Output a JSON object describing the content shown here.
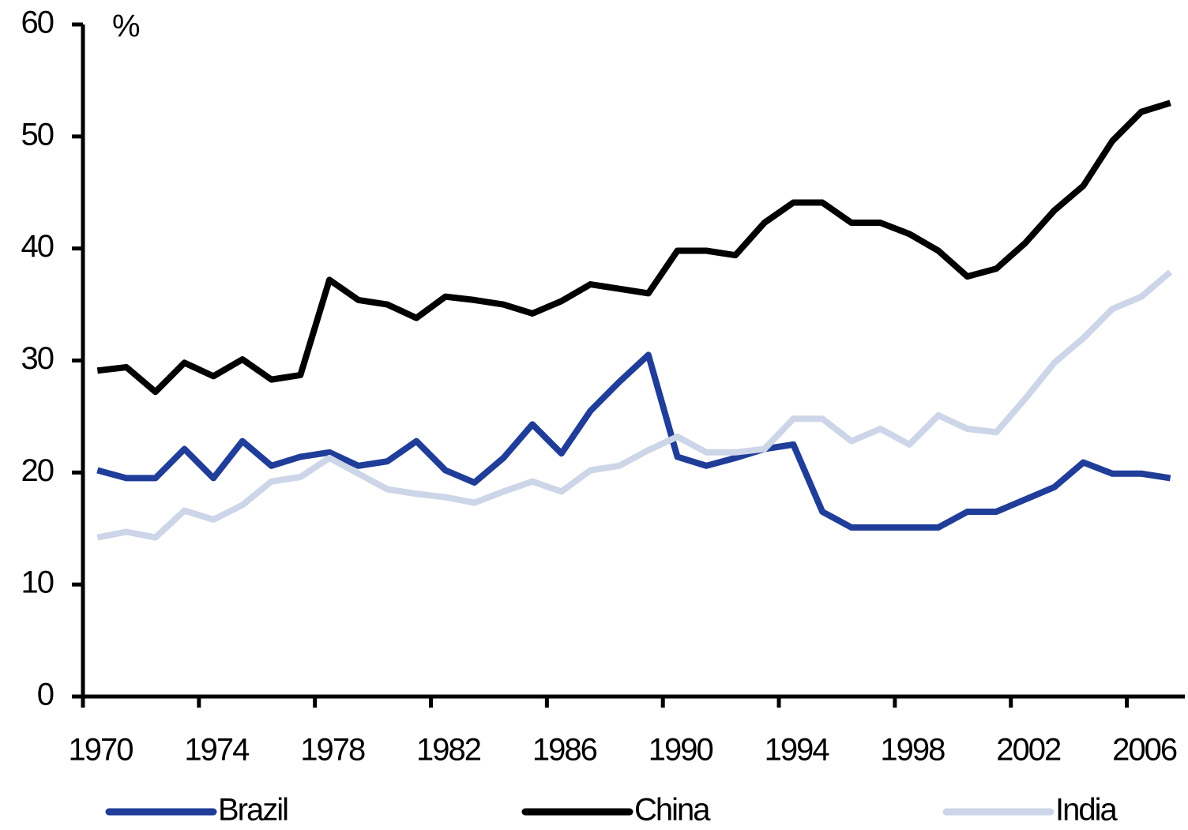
{
  "chart_data": {
    "type": "line",
    "y_label": "%",
    "categories": [
      "1970",
      null,
      null,
      null,
      "1974",
      null,
      null,
      null,
      "1978",
      null,
      null,
      null,
      "1982",
      null,
      null,
      null,
      "1986",
      null,
      null,
      null,
      "1990",
      null,
      null,
      null,
      "1994",
      null,
      null,
      null,
      "1998",
      null,
      null,
      null,
      "2002",
      null,
      null,
      null,
      "2006",
      null
    ],
    "series": [
      {
        "name": "Brazil",
        "color": "#1f3d99",
        "values": [
          20.2,
          19.5,
          19.5,
          22.1,
          19.5,
          22.8,
          20.6,
          21.4,
          21.8,
          20.6,
          21.0,
          22.8,
          20.2,
          19.1,
          21.3,
          24.3,
          21.7,
          25.5,
          28.1,
          30.5,
          21.4,
          20.6,
          21.3,
          22.1,
          22.5,
          16.5,
          15.1,
          15.1,
          15.1,
          15.1,
          16.5,
          16.5,
          17.6,
          18.7,
          20.9,
          19.9,
          19.9,
          19.5
        ]
      },
      {
        "name": "China",
        "color": "#000000",
        "values": [
          29.1,
          29.4,
          27.2,
          29.8,
          28.6,
          30.1,
          28.3,
          28.7,
          37.2,
          35.4,
          35.0,
          33.8,
          35.7,
          35.4,
          35.0,
          34.2,
          35.3,
          36.8,
          36.4,
          36.0,
          39.8,
          39.8,
          39.4,
          42.3,
          44.1,
          44.1,
          42.3,
          42.3,
          41.3,
          39.8,
          37.5,
          38.2,
          40.5,
          43.4,
          45.6,
          49.6,
          52.2,
          53.0
        ]
      },
      {
        "name": "India",
        "color": "#cdd5e8",
        "values": [
          14.2,
          14.7,
          14.2,
          16.6,
          15.8,
          17.1,
          19.2,
          19.6,
          21.3,
          19.9,
          18.5,
          18.1,
          17.8,
          17.3,
          18.3,
          19.2,
          18.3,
          20.2,
          20.6,
          22.0,
          23.2,
          21.8,
          21.8,
          22.1,
          24.8,
          24.8,
          22.8,
          23.9,
          22.5,
          25.1,
          23.9,
          23.6,
          26.6,
          29.8,
          32.0,
          34.6,
          35.7,
          37.9
        ]
      }
    ],
    "ylim": [
      0,
      60
    ],
    "yticks": [
      0,
      10,
      20,
      30,
      40,
      50,
      60
    ],
    "legend": "bottom"
  }
}
